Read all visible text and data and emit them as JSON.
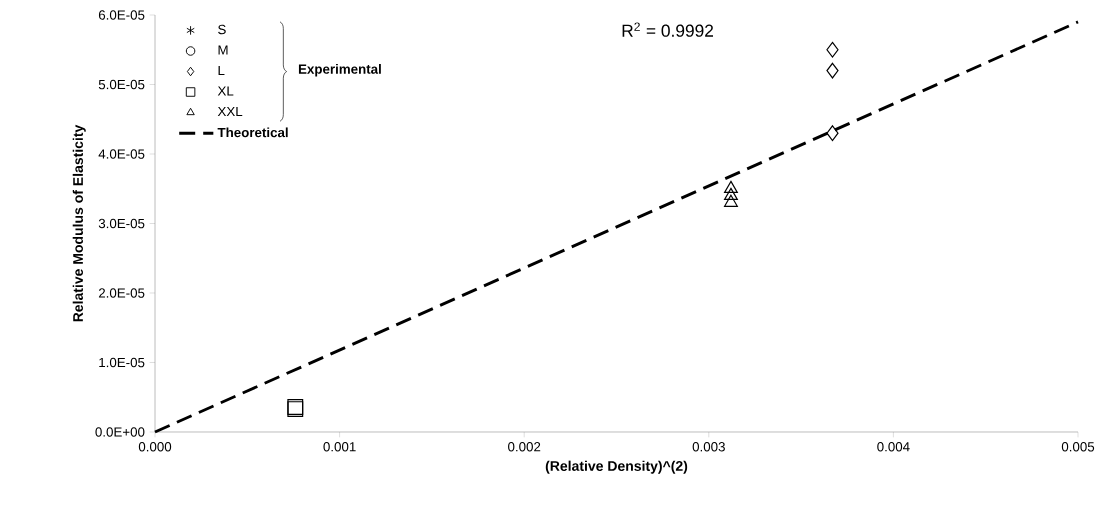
{
  "chart_data": {
    "type": "scatter",
    "xlabel": "(Relative Density)^(2)",
    "ylabel": "Relative Modulus of Elasticity",
    "xlim": [
      0,
      0.005
    ],
    "ylim": [
      0,
      6e-05
    ],
    "xticks": [
      {
        "value": 0,
        "label": "0.000"
      },
      {
        "value": 0.001,
        "label": "0.001"
      },
      {
        "value": 0.002,
        "label": "0.002"
      },
      {
        "value": 0.003,
        "label": "0.003"
      },
      {
        "value": 0.004,
        "label": "0.004"
      },
      {
        "value": 0.005,
        "label": "0.005"
      }
    ],
    "yticks": [
      {
        "value": 0,
        "label": "0.0E+00"
      },
      {
        "value": 1e-05,
        "label": "1.0E-05"
      },
      {
        "value": 2e-05,
        "label": "2.0E-05"
      },
      {
        "value": 3e-05,
        "label": "3.0E-05"
      },
      {
        "value": 4e-05,
        "label": "4.0E-05"
      },
      {
        "value": 5e-05,
        "label": "5.0E-05"
      },
      {
        "value": 6e-05,
        "label": "6.0E-05"
      }
    ],
    "legend": "top left",
    "series": [
      {
        "name": "S",
        "color": "#000000",
        "marker": "star"
      },
      {
        "name": "M",
        "color": "#000000",
        "marker": "circle"
      },
      {
        "name": "L",
        "color": "#000000",
        "marker": "diamond",
        "x": [
          0.00367,
          0.00367,
          0.00367
        ],
        "values": [
          5.5e-05,
          5.2e-05,
          4.3e-05
        ]
      },
      {
        "name": "XL",
        "color": "#000000",
        "marker": "square",
        "x": [
          0.00076,
          0.00076
        ],
        "values": [
          3.3e-06,
          3.6e-06
        ]
      },
      {
        "name": "XXL",
        "color": "#000000",
        "marker": "triangle",
        "x": [
          0.00312,
          0.00312,
          0.00312
        ],
        "values": [
          3.5e-05,
          3.4e-05,
          3.3e-05
        ]
      },
      {
        "name": "Theoretical",
        "type": "line",
        "line_style": "dashed",
        "marker": "none",
        "color": "#000000",
        "x": [
          0,
          0.005
        ],
        "values": [
          0,
          5.9e-05
        ]
      }
    ],
    "annotations": [
      "Experimental",
      "R$^{2}$ = 0.9992"
    ]
  }
}
